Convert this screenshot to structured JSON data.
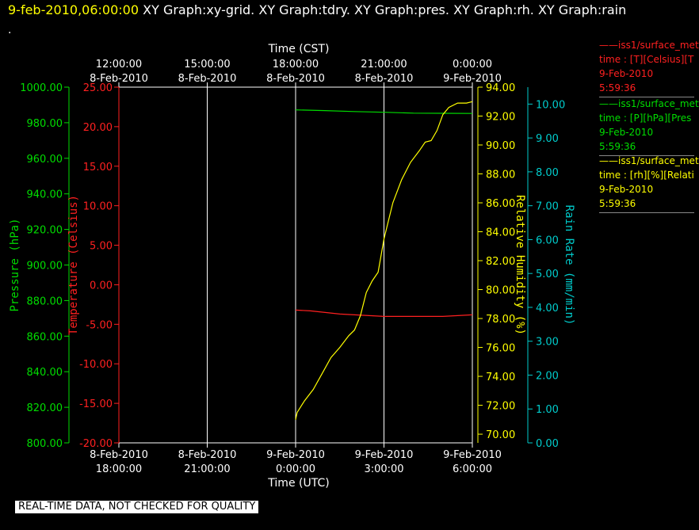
{
  "header": {
    "timestamp": "9-feb-2010,06:00:00",
    "tabs": [
      "XY Graph:xy-grid.",
      "XY Graph:tdry.",
      "XY Graph:pres.",
      "XY Graph:rh.",
      "XY Graph:rain"
    ],
    "dot": "."
  },
  "legend": [
    {
      "line": "——iss1/surface_met",
      "unit": "time : [T][Celsius][T",
      "date": "9-Feb-2010",
      "time": "5:59:36",
      "color": "#ff2020"
    },
    {
      "line": "——iss1/surface_met",
      "unit": "time : [P][hPa][Pres",
      "date": "9-Feb-2010",
      "time": "5:59:36",
      "color": "#00dd00"
    },
    {
      "line": "——iss1/surface_met",
      "unit": "time : [rh][%][Relati",
      "date": "9-Feb-2010",
      "time": "5:59:36",
      "color": "#ffff00"
    }
  ],
  "warning": "REAL-TIME DATA, NOT CHECKED FOR QUALITY",
  "chart_data": {
    "type": "line",
    "top_axis": {
      "label": "Time (CST)",
      "ticks": [
        {
          "time": "12:00:00",
          "date": "8-Feb-2010"
        },
        {
          "time": "15:00:00",
          "date": "8-Feb-2010"
        },
        {
          "time": "18:00:00",
          "date": "8-Feb-2010"
        },
        {
          "time": "21:00:00",
          "date": "8-Feb-2010"
        },
        {
          "time": "0:00:00",
          "date": "9-Feb-2010"
        }
      ]
    },
    "bottom_axis": {
      "label": "Time (UTC)",
      "ticks": [
        {
          "date": "8-Feb-2010",
          "time": "18:00:00"
        },
        {
          "date": "8-Feb-2010",
          "time": "21:00:00"
        },
        {
          "date": "9-Feb-2010",
          "time": "0:00:00"
        },
        {
          "date": "9-Feb-2010",
          "time": "3:00:00"
        },
        {
          "date": "9-Feb-2010",
          "time": "6:00:00"
        }
      ]
    },
    "x_range_hours_utc": [
      0,
      12
    ],
    "axes": {
      "pressure": {
        "label": "Pressure (hPa)",
        "color": "#00dd00",
        "range": [
          800,
          1000
        ],
        "ticks": [
          "800.00",
          "820.00",
          "840.00",
          "860.00",
          "880.00",
          "900.00",
          "920.00",
          "940.00",
          "960.00",
          "980.00",
          "1000.00"
        ]
      },
      "temperature": {
        "label": "Temperature (Celsius)",
        "color": "#ff2020",
        "range": [
          -20,
          25
        ],
        "ticks": [
          "-20.00",
          "-15.00",
          "-10.00",
          "-5.00",
          "0.00",
          "5.00",
          "10.00",
          "15.00",
          "20.00",
          "25.00"
        ]
      },
      "rh": {
        "label": "Relative Humidity (%)",
        "color": "#ffff00",
        "range": [
          69.4,
          94
        ],
        "ticks": [
          "70.00",
          "72.00",
          "74.00",
          "76.00",
          "78.00",
          "80.00",
          "82.00",
          "84.00",
          "86.00",
          "88.00",
          "90.00",
          "92.00",
          "94.00"
        ]
      },
      "rain": {
        "label": "Rain Rate (mm/min)",
        "color": "#00cccc",
        "range": [
          0,
          10.5
        ],
        "ticks": [
          "0.00",
          "1.00",
          "2.00",
          "3.00",
          "4.00",
          "5.00",
          "6.00",
          "7.00",
          "8.00",
          "9.00",
          "10.00"
        ]
      }
    },
    "grid": true,
    "series": [
      {
        "axis": "pressure",
        "color": "#00dd00",
        "x": [
          6.0,
          7.0,
          8.0,
          9.0,
          10.0,
          11.0,
          12.0
        ],
        "y": [
          987.2,
          986.8,
          986.3,
          985.9,
          985.4,
          985.3,
          985.2
        ]
      },
      {
        "axis": "temperature",
        "color": "#ff2020",
        "x": [
          6.0,
          6.5,
          7.0,
          7.5,
          8.0,
          8.5,
          9.0,
          9.5,
          10.0,
          10.5,
          11.0,
          11.5,
          12.0
        ],
        "y": [
          -3.2,
          -3.3,
          -3.5,
          -3.7,
          -3.8,
          -3.9,
          -4.0,
          -4.0,
          -4.0,
          -4.0,
          -4.0,
          -3.9,
          -3.8
        ]
      },
      {
        "axis": "rh",
        "color": "#ffff00",
        "x": [
          6.0,
          6.05,
          6.3,
          6.6,
          6.9,
          7.2,
          7.5,
          7.8,
          8.0,
          8.2,
          8.4,
          8.6,
          8.8,
          9.0,
          9.3,
          9.6,
          9.9,
          10.2,
          10.4,
          10.6,
          10.8,
          11.0,
          11.2,
          11.5,
          11.8,
          12.0
        ],
        "y": [
          71.0,
          71.5,
          72.3,
          73.1,
          74.2,
          75.3,
          76.0,
          76.8,
          77.2,
          78.2,
          79.8,
          80.6,
          81.2,
          83.5,
          86.0,
          87.6,
          88.8,
          89.6,
          90.2,
          90.3,
          91.0,
          92.1,
          92.6,
          92.9,
          92.9,
          93.0
        ]
      }
    ]
  }
}
